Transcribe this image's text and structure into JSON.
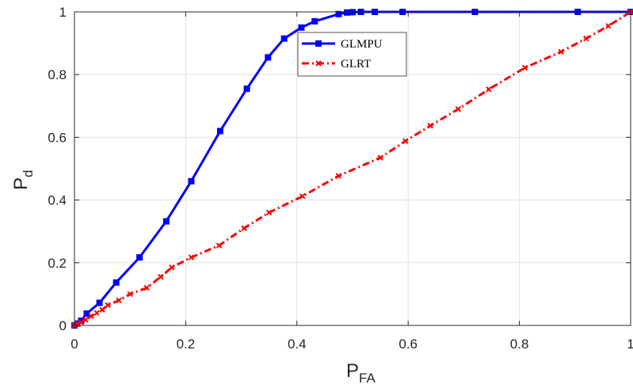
{
  "chart_data": {
    "type": "line",
    "title": "",
    "xlabel": {
      "main": "P",
      "sub": "FA"
    },
    "ylabel": {
      "main": "P",
      "sub": "d"
    },
    "xlim": [
      0,
      1
    ],
    "ylim": [
      0,
      1
    ],
    "xticks": [
      "0",
      "0.2",
      "0.4",
      "0.6",
      "0.8",
      "1"
    ],
    "yticks": [
      "0",
      "0.2",
      "0.4",
      "0.6",
      "0.8",
      "1"
    ],
    "grid": true,
    "legend": "top-center",
    "series": [
      {
        "name": "GLMPU",
        "color": "#0000ff",
        "line": "solid",
        "marker": "square",
        "points": [
          [
            0.0,
            0.0
          ],
          [
            0.005,
            0.006
          ],
          [
            0.012,
            0.015
          ],
          [
            0.022,
            0.038
          ],
          [
            0.045,
            0.072
          ],
          [
            0.075,
            0.137
          ],
          [
            0.117,
            0.217
          ],
          [
            0.165,
            0.332
          ],
          [
            0.21,
            0.46
          ],
          [
            0.262,
            0.62
          ],
          [
            0.31,
            0.755
          ],
          [
            0.348,
            0.855
          ],
          [
            0.377,
            0.915
          ],
          [
            0.408,
            0.95
          ],
          [
            0.432,
            0.97
          ],
          [
            0.475,
            0.993
          ],
          [
            0.49,
            0.998
          ],
          [
            0.5,
            0.999
          ],
          [
            0.515,
            1.0
          ],
          [
            0.54,
            1.0
          ],
          [
            0.59,
            1.0
          ],
          [
            0.72,
            1.0
          ],
          [
            0.905,
            1.0
          ],
          [
            1.0,
            1.0
          ]
        ]
      },
      {
        "name": "GLRT",
        "color": "#ff0000",
        "line": "dashdot",
        "marker": "x",
        "points": [
          [
            0.0,
            0.0
          ],
          [
            0.005,
            0.005
          ],
          [
            0.012,
            0.01
          ],
          [
            0.02,
            0.018
          ],
          [
            0.03,
            0.03
          ],
          [
            0.04,
            0.04
          ],
          [
            0.05,
            0.05
          ],
          [
            0.06,
            0.065
          ],
          [
            0.08,
            0.08
          ],
          [
            0.1,
            0.1
          ],
          [
            0.13,
            0.12
          ],
          [
            0.155,
            0.155
          ],
          [
            0.175,
            0.185
          ],
          [
            0.21,
            0.217
          ],
          [
            0.26,
            0.255
          ],
          [
            0.305,
            0.31
          ],
          [
            0.35,
            0.36
          ],
          [
            0.41,
            0.412
          ],
          [
            0.475,
            0.477
          ],
          [
            0.55,
            0.535
          ],
          [
            0.595,
            0.588
          ],
          [
            0.64,
            0.637
          ],
          [
            0.69,
            0.69
          ],
          [
            0.745,
            0.753
          ],
          [
            0.81,
            0.822
          ],
          [
            0.875,
            0.873
          ],
          [
            0.92,
            0.915
          ],
          [
            0.96,
            0.955
          ],
          [
            1.0,
            1.0
          ]
        ]
      }
    ]
  }
}
